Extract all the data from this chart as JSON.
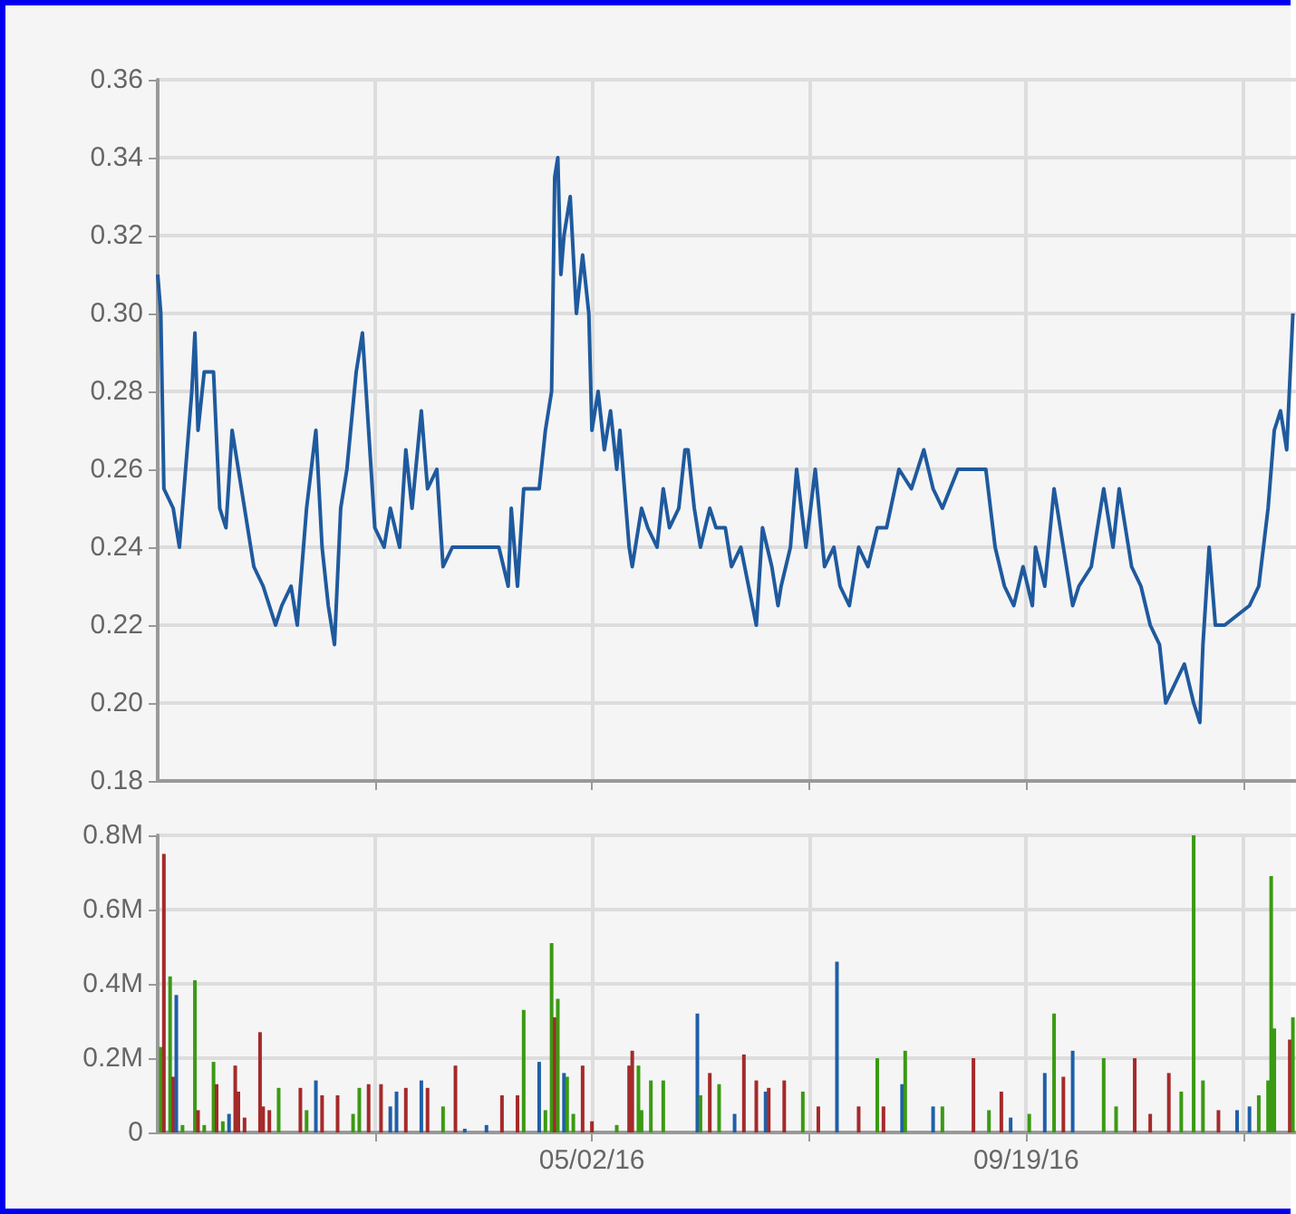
{
  "chart_data": [
    {
      "type": "line",
      "grid": true,
      "tick_labels": "y",
      "xlim": [
        "2015-12-14",
        "2016-12-15"
      ],
      "xticks": [
        {
          "value": "2016-02-22",
          "label": null
        },
        {
          "value": "2016-05-02",
          "label": null
        },
        {
          "value": "2016-07-11",
          "label": null
        },
        {
          "value": "2016-09-19",
          "label": null
        },
        {
          "value": "2016-11-28",
          "label": null
        }
      ],
      "ylim": [
        0.18,
        0.36
      ],
      "yticks": [
        0.18,
        {
          "value": 0.2,
          "label": "0.20"
        },
        0.22,
        0.24,
        0.26,
        0.28,
        {
          "value": 0.3,
          "label": "0.30"
        },
        0.32,
        0.34,
        0.36
      ],
      "x": [
        "2015-12-14",
        "2015-12-15",
        "2015-12-16",
        "2015-12-19",
        "2015-12-21",
        "2015-12-23",
        "2015-12-25",
        "2015-12-26",
        "2015-12-27",
        "2015-12-29",
        "2016-01-01",
        "2016-01-03",
        "2016-01-05",
        "2016-01-07",
        "2016-01-09",
        "2016-01-12",
        "2016-01-14",
        "2016-01-17",
        "2016-01-21",
        "2016-01-23",
        "2016-01-26",
        "2016-01-28",
        "2016-01-31",
        "2016-02-03",
        "2016-02-05",
        "2016-02-07",
        "2016-02-09",
        "2016-02-11",
        "2016-02-13",
        "2016-02-16",
        "2016-02-18",
        "2016-02-20",
        "2016-02-22",
        "2016-02-25",
        "2016-02-27",
        "2016-03-01",
        "2016-03-03",
        "2016-03-05",
        "2016-03-08",
        "2016-03-10",
        "2016-03-13",
        "2016-03-15",
        "2016-03-18",
        "2016-03-21",
        "2016-03-27",
        "2016-04-02",
        "2016-04-05",
        "2016-04-06",
        "2016-04-08",
        "2016-04-10",
        "2016-04-15",
        "2016-04-17",
        "2016-04-19",
        "2016-04-20",
        "2016-04-21",
        "2016-04-22",
        "2016-04-23",
        "2016-04-25",
        "2016-04-27",
        "2016-04-29",
        "2016-05-01",
        "2016-05-02",
        "2016-05-04",
        "2016-05-06",
        "2016-05-08",
        "2016-05-10",
        "2016-05-11",
        "2016-05-14",
        "2016-05-15",
        "2016-05-18",
        "2016-05-20",
        "2016-05-23",
        "2016-05-25",
        "2016-05-27",
        "2016-05-30",
        "2016-06-01",
        "2016-06-02",
        "2016-06-04",
        "2016-06-06",
        "2016-06-09",
        "2016-06-11",
        "2016-06-14",
        "2016-06-16",
        "2016-06-19",
        "2016-06-24",
        "2016-06-26",
        "2016-06-29",
        "2016-07-01",
        "2016-07-02",
        "2016-07-05",
        "2016-07-07",
        "2016-07-10",
        "2016-07-13",
        "2016-07-16",
        "2016-07-19",
        "2016-07-21",
        "2016-07-24",
        "2016-07-27",
        "2016-07-30",
        "2016-08-02",
        "2016-08-05",
        "2016-08-09",
        "2016-08-13",
        "2016-08-17",
        "2016-08-20",
        "2016-08-23",
        "2016-08-28",
        "2016-09-06",
        "2016-09-09",
        "2016-09-12",
        "2016-09-15",
        "2016-09-18",
        "2016-09-21",
        "2016-09-22",
        "2016-09-25",
        "2016-09-28",
        "2016-09-30",
        "2016-10-04",
        "2016-10-06",
        "2016-10-10",
        "2016-10-14",
        "2016-10-17",
        "2016-10-19",
        "2016-10-23",
        "2016-10-26",
        "2016-10-29",
        "2016-11-01",
        "2016-11-03",
        "2016-11-06",
        "2016-11-09",
        "2016-11-12",
        "2016-11-14",
        "2016-11-15",
        "2016-11-17",
        "2016-11-19",
        "2016-11-22",
        "2016-11-30",
        "2016-12-03",
        "2016-12-06",
        "2016-12-08",
        "2016-12-10",
        "2016-12-12",
        "2016-12-14"
      ],
      "series": [
        {
          "color": "#1f5a9e",
          "values": [
            0.31,
            0.3,
            0.255,
            0.25,
            0.24,
            0.26,
            0.28,
            0.295,
            0.27,
            0.285,
            0.285,
            0.25,
            0.245,
            0.27,
            0.26,
            0.245,
            0.235,
            0.23,
            0.22,
            0.225,
            0.23,
            0.22,
            0.25,
            0.27,
            0.24,
            0.225,
            0.215,
            0.25,
            0.26,
            0.285,
            0.295,
            0.27,
            0.245,
            0.24,
            0.25,
            0.24,
            0.265,
            0.25,
            0.275,
            0.255,
            0.26,
            0.235,
            0.24,
            0.24,
            0.24,
            0.24,
            0.23,
            0.25,
            0.23,
            0.255,
            0.255,
            0.27,
            0.28,
            0.335,
            0.34,
            0.31,
            0.32,
            0.33,
            0.3,
            0.315,
            0.3,
            0.27,
            0.28,
            0.265,
            0.275,
            0.26,
            0.27,
            0.24,
            0.235,
            0.25,
            0.245,
            0.24,
            0.255,
            0.245,
            0.25,
            0.265,
            0.265,
            0.25,
            0.24,
            0.25,
            0.245,
            0.245,
            0.235,
            0.24,
            0.22,
            0.245,
            0.235,
            0.225,
            0.23,
            0.24,
            0.26,
            0.24,
            0.26,
            0.235,
            0.24,
            0.23,
            0.225,
            0.24,
            0.235,
            0.245,
            0.245,
            0.26,
            0.255,
            0.265,
            0.255,
            0.25,
            0.26,
            0.26,
            0.24,
            0.23,
            0.225,
            0.235,
            0.225,
            0.24,
            0.23,
            0.255,
            0.245,
            0.225,
            0.23,
            0.235,
            0.255,
            0.24,
            0.255,
            0.235,
            0.23,
            0.22,
            0.215,
            0.2,
            0.205,
            0.21,
            0.2,
            0.195,
            0.215,
            0.24,
            0.22,
            0.22,
            0.225,
            0.23,
            0.25,
            0.27,
            0.275,
            0.265,
            0.3
          ]
        }
      ]
    },
    {
      "type": "bar",
      "grid": true,
      "xlim": [
        "2015-12-14",
        "2016-12-15"
      ],
      "xticks": [
        {
          "value": "2016-02-22",
          "label": null
        },
        {
          "value": "2016-05-02",
          "label": "05/02/16"
        },
        {
          "value": "2016-07-11",
          "label": null
        },
        {
          "value": "2016-09-19",
          "label": "09/19/16"
        },
        {
          "value": "2016-11-28",
          "label": null
        }
      ],
      "ylim": [
        0,
        800000
      ],
      "yticks": [
        0,
        {
          "value": 200000,
          "label": "0.2M"
        },
        {
          "value": 400000,
          "label": "0.4M"
        },
        {
          "value": 600000,
          "label": "0.6M"
        },
        {
          "value": 800000,
          "label": "0.8M"
        }
      ],
      "x": [
        "2015-12-15",
        "2015-12-16",
        "2015-12-18",
        "2015-12-19",
        "2015-12-20",
        "2015-12-22",
        "2015-12-26",
        "2015-12-27",
        "2015-12-29",
        "2016-01-01",
        "2016-01-02",
        "2016-01-04",
        "2016-01-06",
        "2016-01-08",
        "2016-01-09",
        "2016-01-11",
        "2016-01-16",
        "2016-01-17",
        "2016-01-19",
        "2016-01-22",
        "2016-01-29",
        "2016-01-31",
        "2016-02-03",
        "2016-02-05",
        "2016-02-10",
        "2016-02-15",
        "2016-02-17",
        "2016-02-20",
        "2016-02-24",
        "2016-02-27",
        "2016-02-29",
        "2016-03-03",
        "2016-03-08",
        "2016-03-10",
        "2016-03-15",
        "2016-03-19",
        "2016-03-22",
        "2016-03-29",
        "2016-04-03",
        "2016-04-08",
        "2016-04-10",
        "2016-04-15",
        "2016-04-17",
        "2016-04-19",
        "2016-04-20",
        "2016-04-21",
        "2016-04-23",
        "2016-04-24",
        "2016-04-26",
        "2016-04-29",
        "2016-05-02",
        "2016-05-10",
        "2016-05-14",
        "2016-05-15",
        "2016-05-17",
        "2016-05-18",
        "2016-05-21",
        "2016-05-25",
        "2016-06-05",
        "2016-06-06",
        "2016-06-09",
        "2016-06-12",
        "2016-06-17",
        "2016-06-20",
        "2016-06-24",
        "2016-06-27",
        "2016-06-28",
        "2016-07-03",
        "2016-07-09",
        "2016-07-14",
        "2016-07-20",
        "2016-07-27",
        "2016-08-02",
        "2016-08-04",
        "2016-08-10",
        "2016-08-11",
        "2016-08-20",
        "2016-08-23",
        "2016-09-02",
        "2016-09-07",
        "2016-09-11",
        "2016-09-14",
        "2016-09-20",
        "2016-09-25",
        "2016-09-28",
        "2016-10-01",
        "2016-10-04",
        "2016-10-14",
        "2016-10-18",
        "2016-10-24",
        "2016-10-29",
        "2016-11-04",
        "2016-11-08",
        "2016-11-12",
        "2016-11-15",
        "2016-11-20",
        "2016-11-26",
        "2016-11-30",
        "2016-12-03",
        "2016-12-06",
        "2016-12-07",
        "2016-12-08",
        "2016-12-13",
        "2016-12-14"
      ],
      "values": [
        230000,
        750000,
        420000,
        150000,
        370000,
        20000,
        410000,
        60000,
        20000,
        190000,
        130000,
        30000,
        50000,
        180000,
        110000,
        40000,
        270000,
        70000,
        60000,
        120000,
        120000,
        60000,
        140000,
        100000,
        100000,
        50000,
        120000,
        130000,
        130000,
        70000,
        110000,
        120000,
        140000,
        120000,
        70000,
        180000,
        10000,
        20000,
        100000,
        100000,
        330000,
        190000,
        60000,
        510000,
        310000,
        360000,
        160000,
        150000,
        50000,
        180000,
        30000,
        20000,
        180000,
        220000,
        180000,
        60000,
        140000,
        140000,
        320000,
        100000,
        160000,
        130000,
        50000,
        210000,
        140000,
        110000,
        120000,
        140000,
        110000,
        70000,
        460000,
        70000,
        200000,
        70000,
        130000,
        220000,
        70000,
        70000,
        200000,
        60000,
        110000,
        40000,
        50000,
        160000,
        320000,
        150000,
        220000,
        200000,
        70000,
        200000,
        50000,
        160000,
        110000,
        800000,
        140000,
        60000,
        60000,
        70000,
        100000,
        140000,
        690000,
        280000,
        250000,
        310000
      ],
      "colors": [
        "#3a9a12",
        "#a52a2a",
        "#3a9a12",
        "#a52a2a",
        "#1f5fa8",
        "#3a9a12",
        "#3a9a12",
        "#a52a2a",
        "#3a9a12",
        "#3a9a12",
        "#a52a2a",
        "#3a9a12",
        "#1f5fa8",
        "#a52a2a",
        "#a52a2a",
        "#a52a2a",
        "#a52a2a",
        "#a52a2a",
        "#a52a2a",
        "#3a9a12",
        "#a52a2a",
        "#3a9a12",
        "#1f5fa8",
        "#a52a2a",
        "#a52a2a",
        "#3a9a12",
        "#3a9a12",
        "#a52a2a",
        "#a52a2a",
        "#1f5fa8",
        "#1f5fa8",
        "#a52a2a",
        "#1f5fa8",
        "#a52a2a",
        "#3a9a12",
        "#a52a2a",
        "#1f5fa8",
        "#1f5fa8",
        "#a52a2a",
        "#a52a2a",
        "#3a9a12",
        "#1f5fa8",
        "#3a9a12",
        "#3a9a12",
        "#a52a2a",
        "#3a9a12",
        "#1f5fa8",
        "#3a9a12",
        "#3a9a12",
        "#a52a2a",
        "#a52a2a",
        "#3a9a12",
        "#a52a2a",
        "#a52a2a",
        "#3a9a12",
        "#3a9a12",
        "#3a9a12",
        "#3a9a12",
        "#1f5fa8",
        "#3a9a12",
        "#a52a2a",
        "#3a9a12",
        "#1f5fa8",
        "#a52a2a",
        "#a52a2a",
        "#1f5fa8",
        "#a52a2a",
        "#a52a2a",
        "#3a9a12",
        "#a52a2a",
        "#1f5fa8",
        "#a52a2a",
        "#3a9a12",
        "#a52a2a",
        "#1f5fa8",
        "#3a9a12",
        "#1f5fa8",
        "#3a9a12",
        "#a52a2a",
        "#3a9a12",
        "#a52a2a",
        "#1f5fa8",
        "#3a9a12",
        "#1f5fa8",
        "#3a9a12",
        "#a52a2a",
        "#1f5fa8",
        "#3a9a12",
        "#3a9a12",
        "#a52a2a",
        "#a52a2a",
        "#a52a2a",
        "#3a9a12",
        "#3a9a12",
        "#3a9a12",
        "#a52a2a",
        "#1f5fa8",
        "#1f5fa8",
        "#3a9a12",
        "#3a9a12",
        "#3a9a12",
        "#3a9a12",
        "#a52a2a",
        "#3a9a12"
      ]
    }
  ]
}
